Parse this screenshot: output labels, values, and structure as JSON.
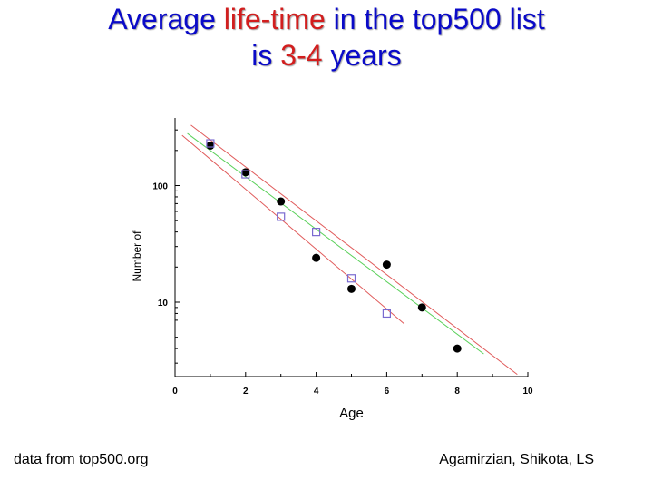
{
  "title": {
    "line1_part1": "Average ",
    "line1_highlight": "life-time",
    "line1_part2": " in the top500 list",
    "line2_part1": "is ",
    "line2_highlight": "3-4",
    "line2_part2": " years"
  },
  "colors": {
    "title": "#0a0ac8",
    "highlight": "#d21e1e",
    "fit_red": "#e05a5a",
    "fit_green": "#5ad05a",
    "open_square": "#7a6ad0",
    "filled_circle": "#000000"
  },
  "footer": {
    "left": "data from top500.org",
    "right": "Agamirzian, Shikota, LS"
  },
  "chart_data": {
    "type": "scatter",
    "xlabel": "Age",
    "ylabel": "Number of",
    "xlim": [
      0,
      10
    ],
    "ylim": [
      2.3,
      380
    ],
    "y_scale": "log",
    "x_ticks": [
      "0",
      "2",
      "4",
      "6",
      "8",
      "10"
    ],
    "y_ticks": [
      {
        "value": 10,
        "label": "10"
      },
      {
        "value": 100,
        "label": "100"
      }
    ],
    "series": [
      {
        "marker": "filled-circle",
        "color": "#000000",
        "points": [
          [
            1,
            220
          ],
          [
            2,
            130
          ],
          [
            3,
            73
          ],
          [
            4,
            24
          ],
          [
            5,
            13
          ],
          [
            6,
            21
          ],
          [
            7,
            9
          ],
          [
            8,
            4
          ]
        ]
      },
      {
        "marker": "open-square",
        "color": "#7a6ad0",
        "points": [
          [
            1,
            230
          ],
          [
            2,
            125
          ],
          [
            3,
            54
          ],
          [
            4,
            40
          ],
          [
            5,
            16
          ],
          [
            6,
            8
          ]
        ]
      }
    ],
    "fit_lines": [
      {
        "color": "#e05a5a",
        "from": [
          0.45,
          330
        ],
        "to": [
          9.7,
          2.4
        ]
      },
      {
        "color": "#5ad05a",
        "from": [
          0.35,
          280
        ],
        "to": [
          8.75,
          3.6
        ]
      },
      {
        "color": "#e05a5a",
        "from": [
          0.2,
          270
        ],
        "to": [
          6.5,
          6.5
        ]
      }
    ]
  }
}
